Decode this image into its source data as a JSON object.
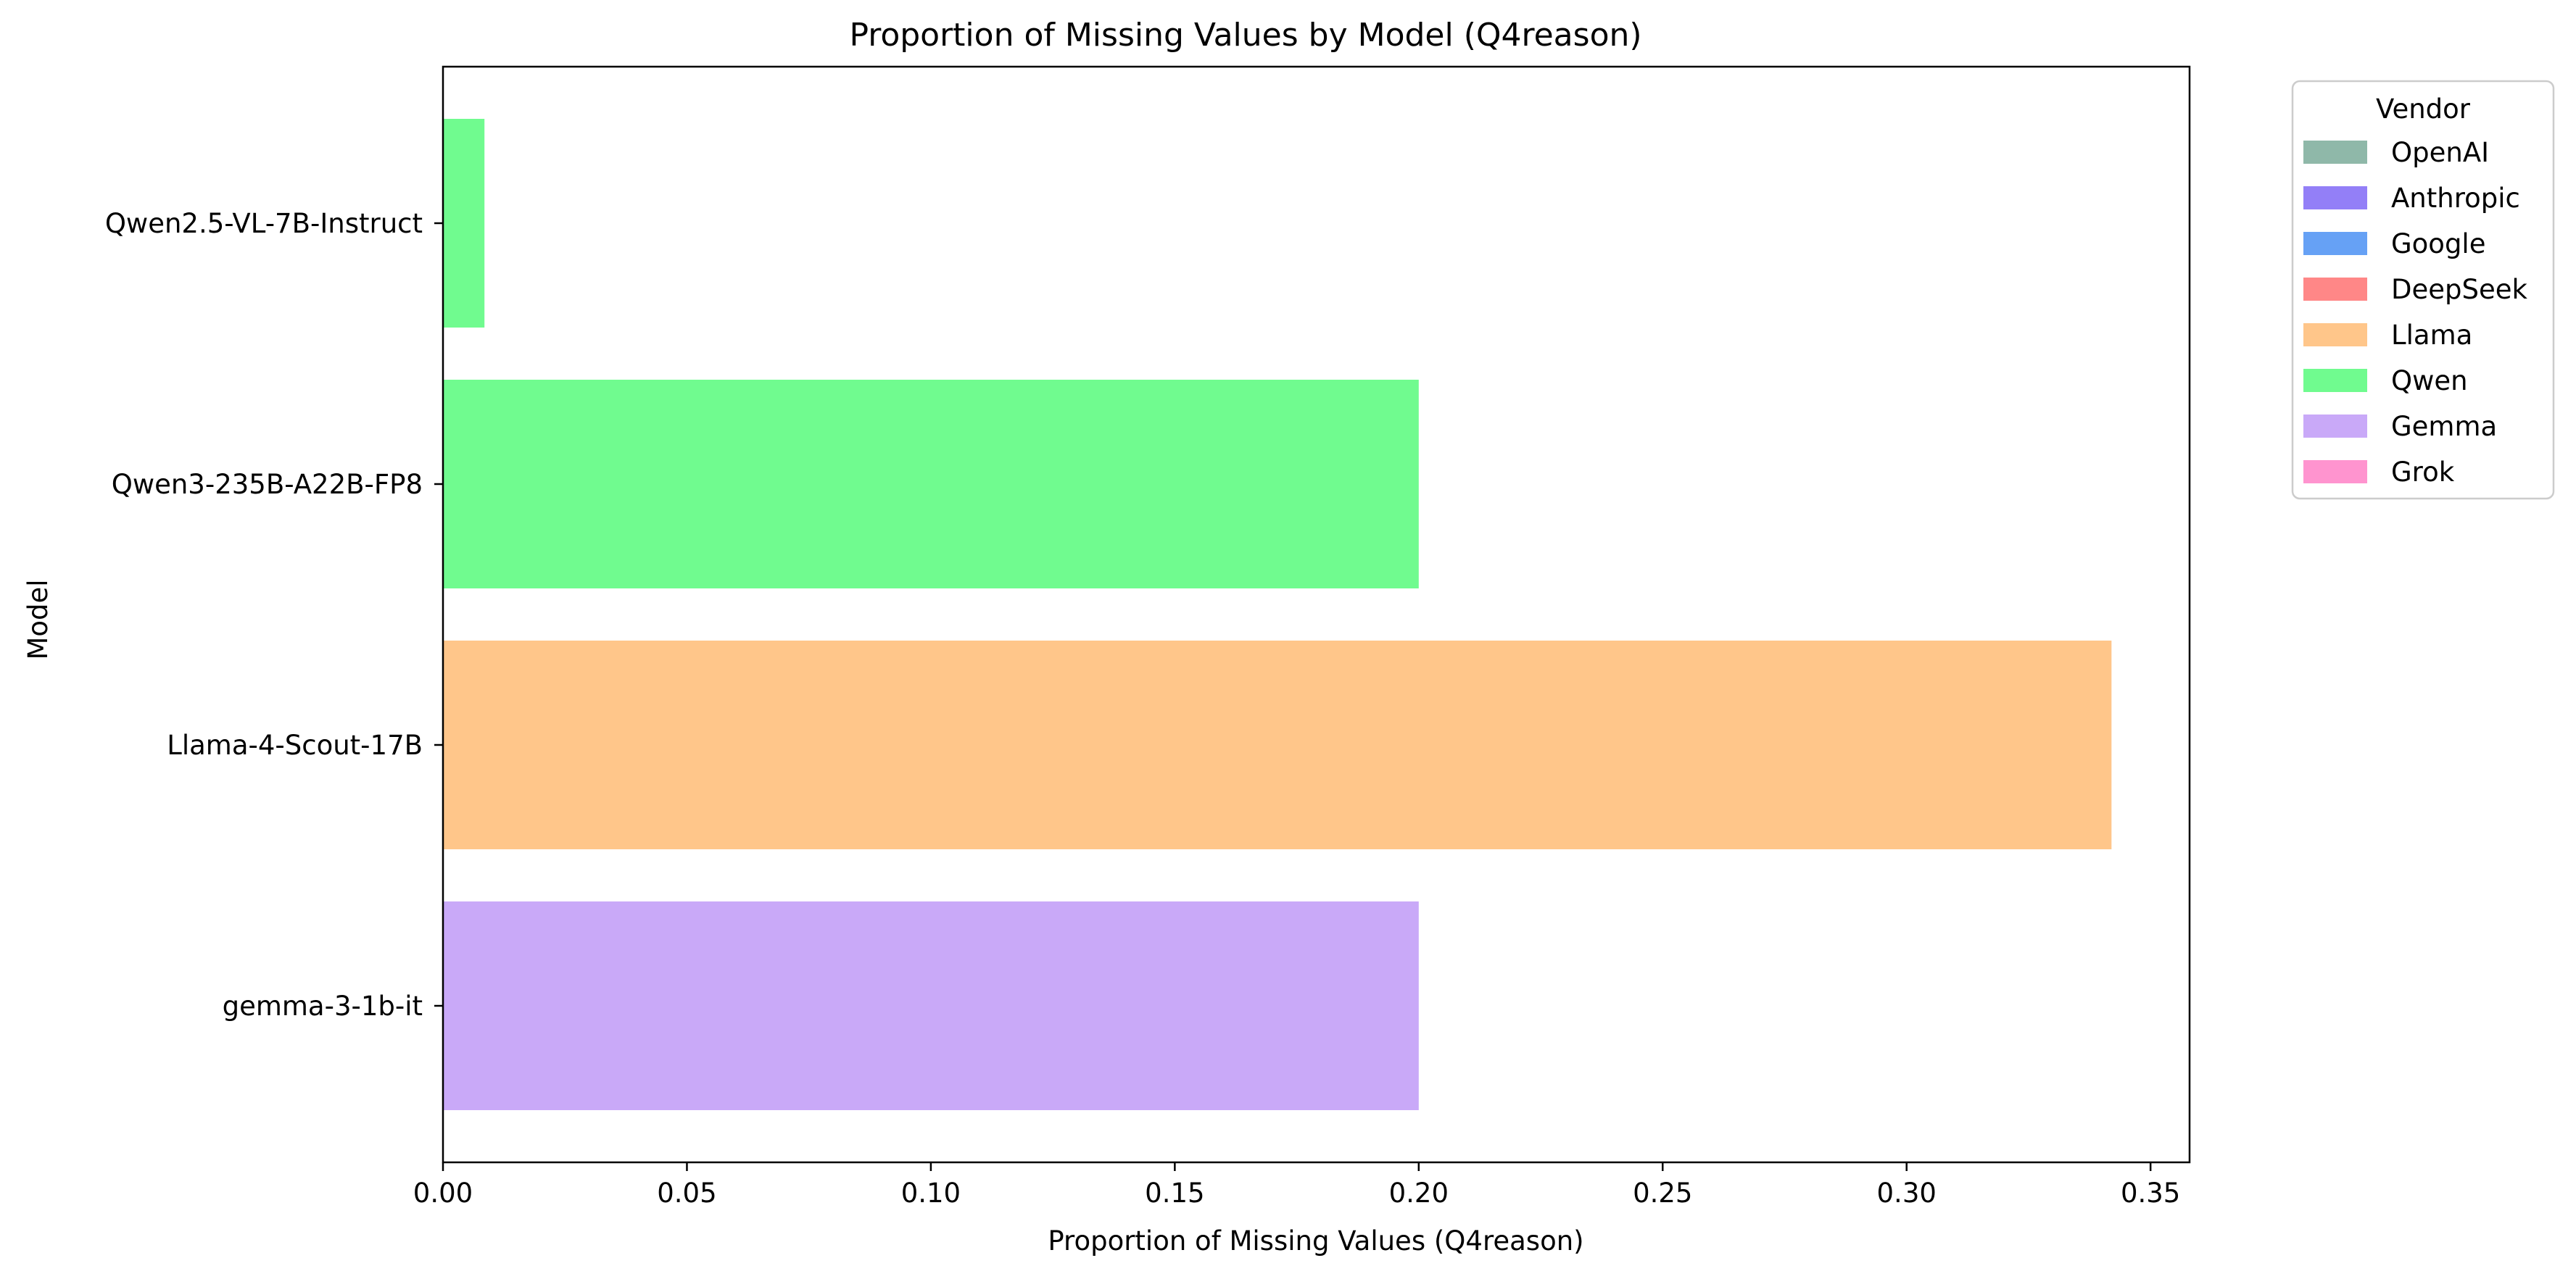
{
  "chart_data": {
    "type": "bar",
    "orientation": "horizontal",
    "title": "Proportion of Missing Values by Model (Q4reason)",
    "xlabel": "Proportion of Missing Values (Q4reason)",
    "ylabel": "Model",
    "xlim": [
      0,
      0.358
    ],
    "xticks": [
      0.0,
      0.05,
      0.1,
      0.15,
      0.2,
      0.25,
      0.3,
      0.35
    ],
    "xtick_labels": [
      "0.00",
      "0.05",
      "0.10",
      "0.15",
      "0.20",
      "0.25",
      "0.30",
      "0.35"
    ],
    "grid": false,
    "bars": [
      {
        "model": "Qwen2.5-VL-7B-Instruct",
        "value": 0.0085,
        "vendor": "Qwen"
      },
      {
        "model": "Qwen3-235B-A22B-FP8",
        "value": 0.2,
        "vendor": "Qwen"
      },
      {
        "model": "Llama-4-Scout-17B",
        "value": 0.342,
        "vendor": "Llama"
      },
      {
        "model": "gemma-3-1b-it",
        "value": 0.2,
        "vendor": "Gemma"
      }
    ],
    "legend": {
      "title": "Vendor",
      "placement": "outside-right",
      "entries": [
        {
          "name": "OpenAI",
          "color": "#8fb8a9"
        },
        {
          "name": "Anthropic",
          "color": "#937ff7"
        },
        {
          "name": "Google",
          "color": "#66a1f5"
        },
        {
          "name": "DeepSeek",
          "color": "#ff8787"
        },
        {
          "name": "Llama",
          "color": "#ffc68a"
        },
        {
          "name": "Qwen",
          "color": "#70fb8f"
        },
        {
          "name": "Gemma",
          "color": "#c9a9f8"
        },
        {
          "name": "Grok",
          "color": "#ff94cf"
        }
      ]
    }
  }
}
